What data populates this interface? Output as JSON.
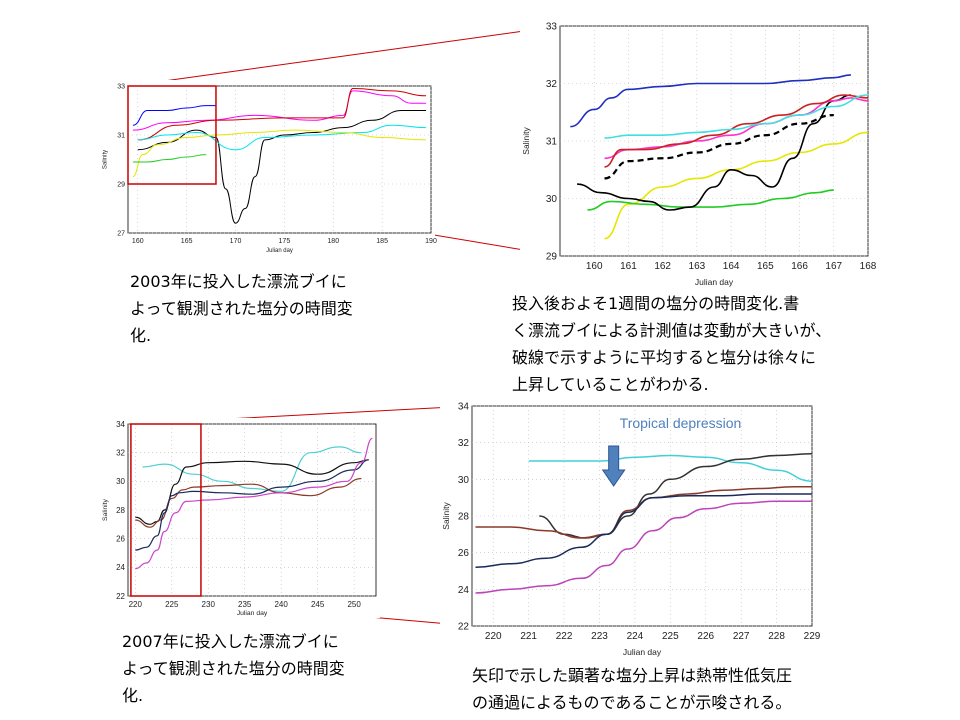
{
  "captions": {
    "top_left": [
      "2003年に投入した漂流ブイに",
      "よって観測された塩分の時間変",
      "化."
    ],
    "top_right": [
      "投入後およそ1週間の塩分の時間変化.書",
      "く漂流ブイによる計測値は変動が大きいが、",
      "破線で示すように平均すると塩分は徐々に",
      "上昇していることがわかる."
    ],
    "bottom_left": [
      "2007年に投入した漂流ブイに",
      "よって観測された塩分の時間変",
      "化."
    ],
    "bottom_right": [
      "矢印で示した顕著な塩分上昇は熱帯性低気圧",
      "の通過によるものであることが示唆される。"
    ]
  },
  "colors": {
    "zoom_box": "#cc0000",
    "arrow": "#4f81bd",
    "annotation": "#4f81bd"
  },
  "chart_data": [
    {
      "id": "c2003_full",
      "type": "line",
      "xlabel": "Julian day",
      "ylabel": "Salinity",
      "xlim": [
        159,
        190
      ],
      "ylim": [
        27,
        33
      ],
      "xticks": [
        160,
        165,
        170,
        175,
        180,
        185,
        190
      ],
      "yticks": [
        27,
        29,
        31,
        33
      ],
      "grid": "dotted",
      "series": [
        {
          "color": "#0000ff",
          "x": [
            159.5,
            161,
            163,
            165,
            167,
            168
          ],
          "y": [
            31.4,
            32.0,
            32.0,
            32.1,
            32.2,
            32.2
          ]
        },
        {
          "color": "#ff00ff",
          "x": [
            159.5,
            163,
            167,
            172,
            178,
            181,
            182,
            186,
            188,
            189.5
          ],
          "y": [
            31.2,
            31.5,
            31.6,
            31.8,
            31.6,
            31.8,
            32.8,
            32.6,
            32.3,
            32.3
          ]
        },
        {
          "color": "#cc0000",
          "x": [
            160,
            164,
            168,
            175,
            181,
            182,
            186,
            189.5
          ],
          "y": [
            30.8,
            31.4,
            31.6,
            31.7,
            31.7,
            32.9,
            32.8,
            32.6
          ]
        },
        {
          "color": "#000000",
          "x": [
            160,
            163,
            166,
            168,
            169,
            170,
            171,
            172,
            173,
            175,
            178,
            181,
            184,
            187,
            189.5
          ],
          "y": [
            30.4,
            30.7,
            31.2,
            30.9,
            28.8,
            27.4,
            28.0,
            29.3,
            30.8,
            31.0,
            31.1,
            31.3,
            31.6,
            32.0,
            32.0
          ]
        },
        {
          "color": "#00e5ee",
          "x": [
            160,
            163,
            166,
            170,
            173,
            178,
            183,
            186,
            189.5
          ],
          "y": [
            30.8,
            31.0,
            31.1,
            30.4,
            30.9,
            31.0,
            31.1,
            31.4,
            31.3
          ]
        },
        {
          "color": "#e6e600",
          "x": [
            159.5,
            160.5,
            162,
            165,
            168,
            172,
            176,
            181,
            185,
            189.5
          ],
          "y": [
            29.3,
            30.2,
            30.6,
            30.9,
            31.0,
            31.1,
            31.2,
            31.1,
            30.9,
            30.8
          ]
        },
        {
          "color": "#22cc22",
          "x": [
            159.5,
            161,
            163,
            165,
            167
          ],
          "y": [
            29.9,
            29.9,
            30.0,
            30.1,
            30.2
          ]
        }
      ]
    },
    {
      "id": "c2003_zoom",
      "type": "line",
      "xlabel": "Julian day",
      "ylabel": "Salinity",
      "xlim": [
        159,
        168
      ],
      "ylim": [
        29,
        33
      ],
      "xticks": [
        160,
        161,
        162,
        163,
        164,
        165,
        166,
        167,
        168
      ],
      "yticks": [
        29,
        30,
        31,
        32,
        33
      ],
      "grid": "dotted",
      "series": [
        {
          "color": "#1f2fbf",
          "x": [
            159.3,
            160,
            160.5,
            161,
            162,
            163,
            164,
            165,
            166,
            167,
            167.5
          ],
          "y": [
            31.25,
            31.55,
            31.75,
            31.9,
            31.95,
            32.0,
            32.0,
            32.0,
            32.05,
            32.1,
            32.15
          ]
        },
        {
          "color": "#e6e600",
          "x": [
            160.3,
            161,
            162,
            163,
            164,
            165,
            166,
            167,
            168
          ],
          "y": [
            29.3,
            29.9,
            30.2,
            30.35,
            30.5,
            30.65,
            30.8,
            30.95,
            31.15
          ]
        },
        {
          "color": "#22cc22",
          "x": [
            159.8,
            160.5,
            161.5,
            162.5,
            163.5,
            164.5,
            165.5,
            166.5,
            167
          ],
          "y": [
            29.8,
            29.95,
            29.9,
            29.85,
            29.85,
            29.9,
            30.0,
            30.1,
            30.15
          ]
        },
        {
          "color": "#000000",
          "x": [
            159.5,
            160.2,
            161,
            161.6,
            162.2,
            162.8,
            163.5,
            164,
            164.6,
            165.2,
            165.8,
            166.4,
            167,
            167.5
          ],
          "y": [
            30.25,
            30.1,
            30.0,
            29.95,
            29.8,
            29.85,
            30.2,
            30.5,
            30.4,
            30.2,
            30.7,
            31.3,
            31.7,
            31.8
          ]
        },
        {
          "color": "#ff33cc",
          "x": [
            160.3,
            161,
            162,
            163,
            164,
            165,
            166,
            167,
            167.5,
            168
          ],
          "y": [
            30.7,
            30.85,
            30.9,
            31.0,
            31.1,
            31.3,
            31.45,
            31.7,
            31.75,
            31.7
          ]
        },
        {
          "color": "#cc2222",
          "x": [
            160.3,
            160.8,
            161.5,
            162.5,
            163.5,
            164.5,
            165.5,
            166.5,
            167.3,
            168
          ],
          "y": [
            30.55,
            30.85,
            30.85,
            30.95,
            31.1,
            31.3,
            31.45,
            31.65,
            31.8,
            31.75
          ]
        },
        {
          "color": "#40e0e0",
          "x": [
            160.3,
            161,
            162,
            163,
            164,
            165,
            166,
            167,
            168
          ],
          "y": [
            31.05,
            31.1,
            31.1,
            31.15,
            31.2,
            31.3,
            31.45,
            31.6,
            31.8
          ]
        },
        {
          "color": "#000000",
          "dashed": true,
          "x": [
            160.3,
            161,
            162,
            163,
            164,
            165,
            166,
            167
          ],
          "y": [
            30.35,
            30.65,
            30.7,
            30.8,
            30.95,
            31.1,
            31.3,
            31.45
          ]
        }
      ]
    },
    {
      "id": "c2007_full",
      "type": "line",
      "xlabel": "Julian day",
      "ylabel": "Salinity",
      "xlim": [
        219,
        253
      ],
      "ylim": [
        22,
        34
      ],
      "xticks": [
        220,
        225,
        230,
        235,
        240,
        245,
        250
      ],
      "yticks": [
        22,
        24,
        26,
        28,
        30,
        32,
        34
      ],
      "grid": "dotted",
      "series": [
        {
          "color": "#4fd0d0",
          "x": [
            221,
            224,
            228,
            232,
            236,
            240,
            244,
            248,
            251
          ],
          "y": [
            31.0,
            31.2,
            30.5,
            30.0,
            29.5,
            29.3,
            32.0,
            32.4,
            32.0
          ]
        },
        {
          "color": "#111111",
          "x": [
            220,
            222,
            223,
            224,
            225.5,
            227,
            230,
            235,
            240,
            245,
            250,
            252
          ],
          "y": [
            27.5,
            27.0,
            27.2,
            28.0,
            29.8,
            31.0,
            31.3,
            31.4,
            31.2,
            30.5,
            31.3,
            31.5
          ]
        },
        {
          "color": "#8b3a2a",
          "x": [
            220,
            222,
            223.5,
            225,
            226.5,
            228,
            232,
            236,
            240,
            244,
            248,
            251
          ],
          "y": [
            27.3,
            26.8,
            27.3,
            28.8,
            29.4,
            29.6,
            29.7,
            29.8,
            29.2,
            29.0,
            29.6,
            30.2
          ]
        },
        {
          "color": "#1a2a5a",
          "x": [
            220,
            221.5,
            223,
            224,
            225,
            226,
            228,
            232,
            236,
            240,
            245,
            250,
            252
          ],
          "y": [
            25.2,
            25.4,
            26.2,
            27.8,
            29.0,
            29.2,
            29.3,
            29.2,
            29.1,
            29.6,
            30.0,
            30.8,
            31.5
          ]
        },
        {
          "color": "#cc44cc",
          "x": [
            220,
            221.5,
            223,
            224,
            225.5,
            227,
            230,
            235,
            240,
            245,
            249,
            251,
            252.5
          ],
          "y": [
            23.9,
            24.3,
            25.2,
            26.5,
            27.8,
            28.6,
            28.7,
            28.9,
            29.2,
            29.6,
            30.0,
            31.3,
            33.0
          ]
        }
      ]
    },
    {
      "id": "c2007_zoom",
      "type": "line",
      "xlabel": "Julian day",
      "ylabel": "Salinity",
      "xlim": [
        219.4,
        229
      ],
      "ylim": [
        22,
        34
      ],
      "xticks": [
        220,
        221,
        222,
        223,
        224,
        225,
        226,
        227,
        228,
        229
      ],
      "yticks": [
        22,
        24,
        26,
        28,
        30,
        32,
        34
      ],
      "grid": "dotted",
      "annotation": "Tropical depression",
      "arrow_x": 223.4,
      "series": [
        {
          "color": "#40d0d8",
          "x": [
            221,
            222,
            223,
            224,
            225,
            226,
            227,
            228,
            229
          ],
          "y": [
            31.0,
            31.0,
            31.0,
            31.2,
            31.3,
            31.2,
            30.9,
            30.5,
            29.9
          ]
        },
        {
          "color": "#333333",
          "x": [
            221.3,
            222,
            222.6,
            223.2,
            223.8,
            224.4,
            225,
            226,
            227,
            228,
            229
          ],
          "y": [
            28.0,
            27.0,
            26.8,
            27.0,
            28.0,
            29.2,
            30.0,
            30.7,
            31.1,
            31.3,
            31.4
          ]
        },
        {
          "color": "#8b3a2a",
          "x": [
            219.5,
            220.5,
            221.5,
            222.5,
            223.2,
            223.8,
            224.5,
            225.5,
            226.5,
            227.5,
            228.5,
            229
          ],
          "y": [
            27.4,
            27.4,
            27.2,
            26.8,
            27.0,
            28.3,
            29.0,
            29.2,
            29.4,
            29.5,
            29.6,
            29.6
          ]
        },
        {
          "color": "#1a2a5a",
          "x": [
            219.5,
            220.5,
            221.5,
            222.5,
            223.2,
            223.8,
            224.5,
            225.5,
            226.5,
            227.5,
            228.5,
            229
          ],
          "y": [
            25.2,
            25.4,
            25.7,
            26.3,
            27.0,
            28.2,
            29.0,
            29.1,
            29.1,
            29.2,
            29.2,
            29.2
          ]
        },
        {
          "color": "#bb44bb",
          "x": [
            219.5,
            220.5,
            221.5,
            222.5,
            223.2,
            223.8,
            224.5,
            225.2,
            226,
            227,
            228,
            229
          ],
          "y": [
            23.8,
            24.0,
            24.2,
            24.6,
            25.3,
            26.2,
            27.2,
            27.9,
            28.4,
            28.7,
            28.8,
            28.8
          ]
        }
      ]
    }
  ]
}
